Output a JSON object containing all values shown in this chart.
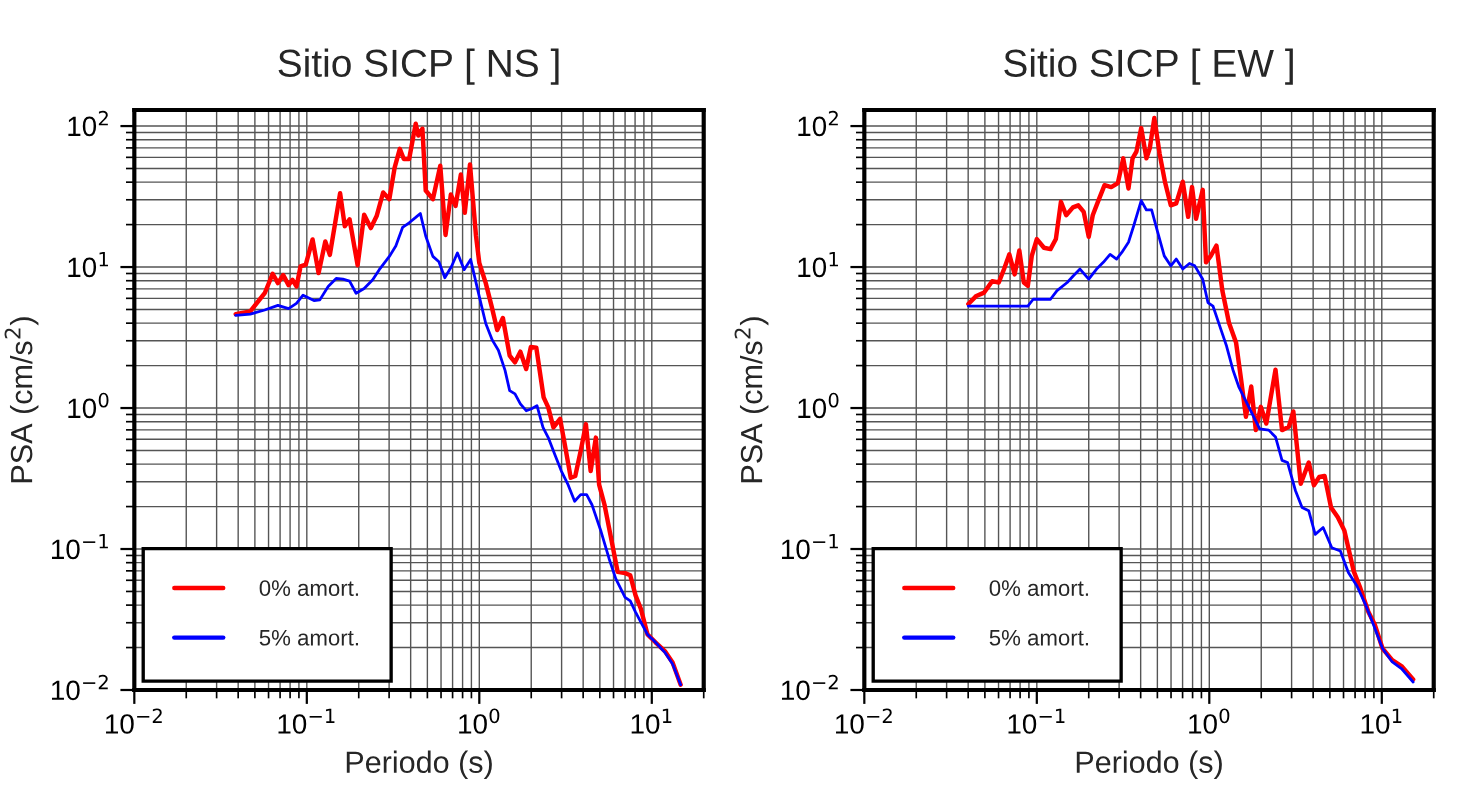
{
  "chart_data": [
    {
      "type": "line",
      "title": "Sitio SICP [ NS ]",
      "xlabel": "Periodo (s)",
      "ylabel": "PSA (cm/s$^{2}$)",
      "log": "xy",
      "grid": true,
      "legend": "bottom left",
      "xlim": [
        0.01,
        20
      ],
      "ylim": [
        0.01,
        130
      ],
      "xticks": [
        {
          "value": 0.01,
          "label": "10$^{−2}$"
        },
        {
          "value": 0.1,
          "label": "10$^{−1}$"
        },
        {
          "value": 1,
          "label": "10$^{0}$"
        },
        {
          "value": 10,
          "label": "10$^{1}$"
        }
      ],
      "yticks": [
        {
          "value": 0.01,
          "label": "10$^{−2}$"
        },
        {
          "value": 0.1,
          "label": "10$^{−1}$"
        },
        {
          "value": 1,
          "label": "10$^{0}$"
        },
        {
          "value": 10,
          "label": "10$^{1}$"
        },
        {
          "value": 100,
          "label": "10$^{2}$"
        }
      ],
      "series": [
        {
          "name": "0% amort.",
          "color": "#ff0000",
          "x": [
            0.0387,
            0.047,
            0.057,
            0.0634,
            0.068,
            0.073,
            0.0784,
            0.0826,
            0.0871,
            0.092,
            0.0986,
            0.108,
            0.117,
            0.128,
            0.136,
            0.156,
            0.166,
            0.177,
            0.197,
            0.215,
            0.235,
            0.254,
            0.277,
            0.301,
            0.323,
            0.346,
            0.365,
            0.392,
            0.428,
            0.443,
            0.468,
            0.489,
            0.538,
            0.594,
            0.637,
            0.684,
            0.728,
            0.782,
            0.824,
            0.883,
            0.957,
            1.0,
            1.09,
            1.18,
            1.27,
            1.37,
            1.5,
            1.61,
            1.73,
            1.87,
            1.99,
            2.14,
            2.36,
            2.51,
            2.69,
            2.94,
            3.13,
            3.39,
            3.6,
            3.87,
            4.15,
            4.42,
            4.74,
            4.95,
            5.32,
            5.81,
            6.34,
            7.0,
            7.5,
            8.05,
            8.64,
            9.44,
            10.5,
            11.9,
            13.2,
            14.7
          ],
          "values": [
            4.64,
            4.85,
            6.52,
            8.96,
            7.69,
            8.77,
            7.44,
            8.12,
            7.28,
            10.1,
            10.4,
            15.7,
            9.06,
            15.2,
            12.2,
            33.4,
            19.5,
            21.8,
            10.3,
            23.5,
            18.9,
            23.0,
            33.8,
            30.3,
            50.7,
            68.9,
            58.4,
            58.4,
            104,
            85.7,
            95.7,
            34.9,
            30.3,
            52.4,
            16.9,
            32.7,
            27.1,
            45.4,
            24.3,
            53.5,
            16.6,
            10.7,
            7.69,
            5.24,
            3.57,
            4.35,
            2.35,
            2.11,
            2.51,
            1.89,
            2.71,
            2.68,
            1.19,
            1.01,
            0.728,
            0.839,
            0.553,
            0.32,
            0.33,
            0.495,
            0.769,
            0.357,
            0.617,
            0.286,
            0.206,
            0.119,
            0.0689,
            0.0674,
            0.0652,
            0.0469,
            0.0377,
            0.0248,
            0.0218,
            0.0189,
            0.0157,
            0.0109
          ]
        },
        {
          "name": "5% amort.",
          "color": "#0000ff",
          "x": [
            0.0387,
            0.047,
            0.057,
            0.068,
            0.0784,
            0.0871,
            0.0951,
            0.11,
            0.119,
            0.133,
            0.148,
            0.162,
            0.177,
            0.193,
            0.215,
            0.241,
            0.263,
            0.301,
            0.328,
            0.359,
            0.392,
            0.428,
            0.455,
            0.489,
            0.538,
            0.583,
            0.631,
            0.69,
            0.747,
            0.817,
            0.891,
            1.0,
            1.09,
            1.19,
            1.29,
            1.41,
            1.5,
            1.61,
            1.73,
            1.87,
            2.01,
            2.16,
            2.34,
            2.51,
            2.74,
            2.99,
            3.27,
            3.57,
            3.87,
            4.19,
            4.5,
            5.08,
            5.65,
            6.18,
            7.0,
            7.5,
            8.05,
            8.64,
            9.44,
            10.5,
            11.9,
            13.2,
            14.7
          ],
          "values": [
            4.54,
            4.64,
            4.96,
            5.35,
            5.07,
            5.53,
            6.31,
            5.78,
            5.85,
            7.28,
            8.3,
            8.2,
            7.94,
            6.52,
            7.05,
            8.12,
            9.58,
            11.9,
            14.1,
            19.1,
            20.6,
            22.5,
            24.0,
            16.6,
            11.9,
            10.9,
            8.4,
            10.1,
            12.6,
            9.58,
            11.3,
            6.17,
            3.98,
            3.03,
            2.57,
            1.85,
            1.33,
            1.26,
            1.07,
            0.957,
            0.989,
            1.04,
            0.728,
            0.617,
            0.469,
            0.357,
            0.286,
            0.218,
            0.243,
            0.243,
            0.206,
            0.133,
            0.0857,
            0.0617,
            0.0454,
            0.0429,
            0.0357,
            0.0303,
            0.0248,
            0.0218,
            0.0185,
            0.0153,
            0.0109
          ]
        }
      ]
    },
    {
      "type": "line",
      "title": "Sitio SICP [ EW ]",
      "xlabel": "Periodo (s)",
      "ylabel": "PSA (cm/s$^{2}$)",
      "log": "xy",
      "grid": true,
      "legend": "bottom left",
      "xlim": [
        0.01,
        20
      ],
      "ylim": [
        0.01,
        130
      ],
      "xticks": [
        {
          "value": 0.01,
          "label": "10$^{−2}$"
        },
        {
          "value": 0.1,
          "label": "10$^{−1}$"
        },
        {
          "value": 1,
          "label": "10$^{0}$"
        },
        {
          "value": 10,
          "label": "10$^{1}$"
        }
      ],
      "yticks": [
        {
          "value": 0.01,
          "label": "10$^{−2}$"
        },
        {
          "value": 0.1,
          "label": "10$^{−1}$"
        },
        {
          "value": 1,
          "label": "10$^{0}$"
        },
        {
          "value": 10,
          "label": "10$^{1}$"
        },
        {
          "value": 100,
          "label": "10$^{2}$"
        }
      ],
      "series": [
        {
          "name": "0% amort.",
          "color": "#ff0000",
          "x": [
            0.0401,
            0.0446,
            0.0495,
            0.0551,
            0.0602,
            0.0646,
            0.0693,
            0.0744,
            0.0792,
            0.0841,
            0.0887,
            0.0935,
            0.1,
            0.11,
            0.12,
            0.129,
            0.138,
            0.148,
            0.162,
            0.174,
            0.187,
            0.2,
            0.211,
            0.226,
            0.247,
            0.27,
            0.295,
            0.317,
            0.34,
            0.359,
            0.378,
            0.403,
            0.432,
            0.452,
            0.48,
            0.515,
            0.553,
            0.598,
            0.643,
            0.702,
            0.754,
            0.794,
            0.838,
            0.916,
            0.957,
            1.02,
            1.1,
            1.19,
            1.3,
            1.43,
            1.53,
            1.63,
            1.75,
            1.86,
            1.99,
            2.14,
            2.42,
            2.64,
            2.89,
            3.07,
            3.39,
            3.77,
            4.04,
            4.34,
            4.66,
            5.08,
            5.56,
            6.07,
            6.87,
            7.5,
            8.34,
            9.12,
            10.1,
            11.5,
            13.0,
            15.2
          ],
          "values": [
            5.47,
            6.24,
            6.59,
            7.94,
            7.77,
            9.68,
            12.3,
            8.87,
            13.1,
            7.77,
            7.36,
            12.0,
            15.8,
            13.7,
            13.4,
            15.8,
            29.0,
            23.3,
            26.5,
            27.4,
            24.6,
            16.4,
            23.3,
            29.0,
            38.1,
            36.9,
            39.4,
            59.0,
            36.1,
            59.0,
            65.9,
            96.8,
            59.0,
            69.7,
            114,
            63.8,
            40.3,
            27.4,
            28.3,
            40.3,
            22.7,
            36.9,
            22.0,
            35.3,
            10.8,
            12.0,
            14.2,
            6.81,
            4.03,
            2.9,
            1.58,
            0.867,
            1.42,
            0.697,
            1.02,
            0.776,
            1.87,
            0.697,
            0.736,
            0.946,
            0.29,
            0.411,
            0.283,
            0.324,
            0.33,
            0.197,
            0.168,
            0.135,
            0.0697,
            0.053,
            0.0361,
            0.029,
            0.0197,
            0.0163,
            0.0148,
            0.0119
          ]
        },
        {
          "name": "5% amort.",
          "color": "#0000ff",
          "x": [
            0.0401,
            0.0453,
            0.0541,
            0.0705,
            0.0887,
            0.0953,
            0.11,
            0.12,
            0.131,
            0.15,
            0.163,
            0.178,
            0.2,
            0.222,
            0.243,
            0.266,
            0.29,
            0.311,
            0.34,
            0.365,
            0.403,
            0.432,
            0.463,
            0.502,
            0.548,
            0.598,
            0.643,
            0.702,
            0.767,
            0.824,
            0.916,
            0.982,
            1.05,
            1.15,
            1.26,
            1.37,
            1.48,
            1.58,
            1.73,
            1.96,
            2.21,
            2.42,
            2.64,
            2.84,
            3.16,
            3.45,
            3.77,
            4.11,
            4.57,
            5.13,
            5.75,
            6.4,
            7.18,
            8.05,
            8.95,
            10.1,
            11.5,
            13.0,
            15.2
          ],
          "values": [
            5.29,
            5.29,
            5.29,
            5.29,
            5.29,
            5.91,
            5.91,
            5.91,
            6.81,
            7.77,
            8.67,
            9.68,
            8.2,
            9.68,
            10.8,
            12.3,
            11.4,
            12.7,
            15.0,
            19.7,
            29.6,
            25.4,
            25.4,
            17.7,
            12.0,
            10.2,
            11.4,
            9.68,
            10.6,
            10.2,
            8.2,
            5.6,
            5.29,
            3.81,
            2.74,
            1.87,
            1.42,
            1.21,
            0.968,
            0.711,
            0.697,
            0.624,
            0.425,
            0.411,
            0.259,
            0.197,
            0.187,
            0.127,
            0.142,
            0.102,
            0.0968,
            0.0681,
            0.0547,
            0.0403,
            0.029,
            0.0197,
            0.0158,
            0.0142,
            0.0114
          ]
        }
      ]
    }
  ]
}
